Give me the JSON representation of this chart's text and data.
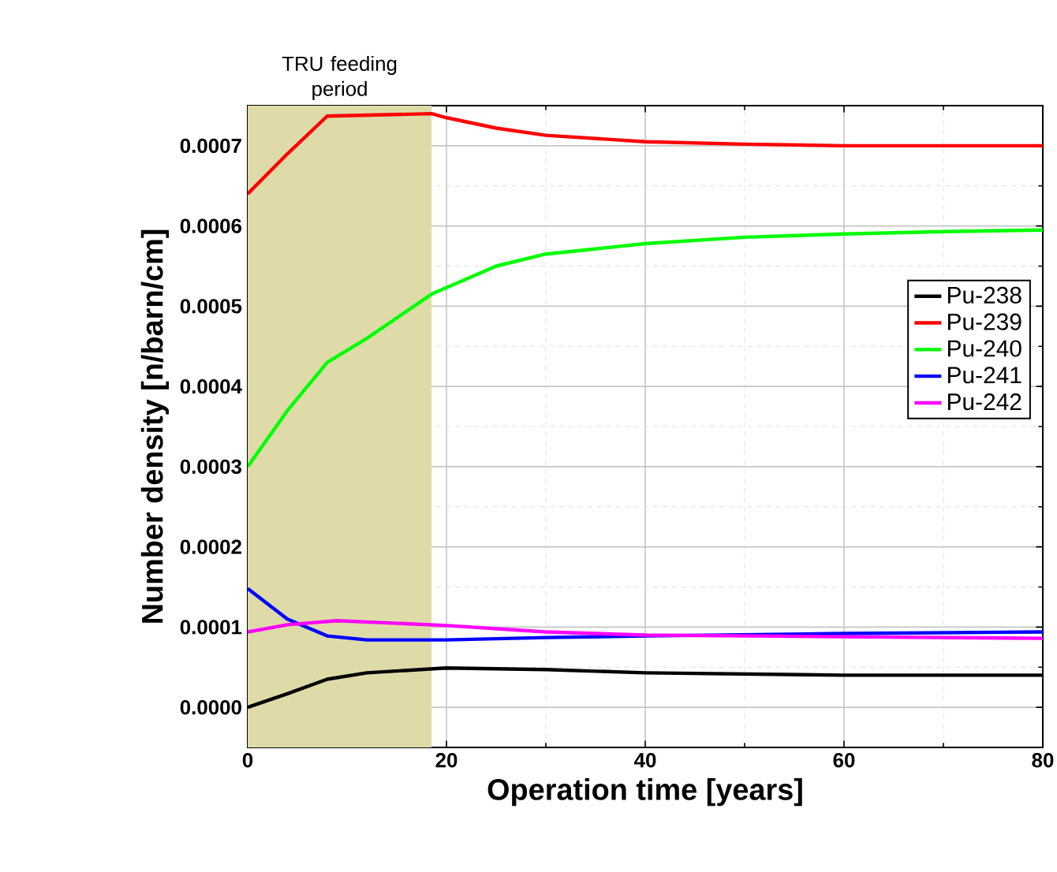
{
  "chart_data": {
    "type": "line",
    "xlabel": "Operation time [years]",
    "ylabel": "Number density [n/barn/cm]",
    "xlim": [
      0,
      80
    ],
    "xticks": [
      0,
      20,
      40,
      60,
      80
    ],
    "ylim": [
      -5e-05,
      0.00075
    ],
    "yticks": [
      {
        "value": 0,
        "label": "0.0000"
      },
      {
        "value": 0.0001,
        "label": "0.0001"
      },
      {
        "value": 0.0002,
        "label": "0.0002"
      },
      {
        "value": 0.0003,
        "label": "0.0003"
      },
      {
        "value": 0.0004,
        "label": "0.0004"
      },
      {
        "value": 0.0005,
        "label": "0.0005"
      },
      {
        "value": 0.0006,
        "label": "0.0006"
      },
      {
        "value": 0.0007,
        "label": "0.0007"
      }
    ],
    "grid": true,
    "legend": "right",
    "marker": "none",
    "line_style": "solid",
    "bands": [
      {
        "axis": "x",
        "from": 0,
        "to": 18.5,
        "label": "TRU feeding period",
        "color": "#dedba9"
      }
    ],
    "series": [
      {
        "name": "Pu-238",
        "color": "#000000",
        "x": [
          0,
          4,
          8,
          12,
          20,
          30,
          40,
          60,
          80
        ],
        "values": [
          0.0,
          1.7e-05,
          3.5e-05,
          4.3e-05,
          4.9e-05,
          4.7e-05,
          4.3e-05,
          4e-05,
          4e-05
        ]
      },
      {
        "name": "Pu-239",
        "color": "#ff0000",
        "x": [
          0,
          4,
          8,
          18.5,
          20,
          25,
          30,
          40,
          50,
          60,
          80
        ],
        "values": [
          0.00064,
          0.00069,
          0.000737,
          0.00074,
          0.000735,
          0.000722,
          0.000713,
          0.000705,
          0.000702,
          0.0007,
          0.0007
        ]
      },
      {
        "name": "Pu-240",
        "color": "#00ff00",
        "x": [
          0,
          4,
          8,
          12,
          18.5,
          25,
          30,
          40,
          50,
          60,
          70,
          80
        ],
        "values": [
          0.0003,
          0.00037,
          0.00043,
          0.00046,
          0.000515,
          0.00055,
          0.000565,
          0.000578,
          0.000586,
          0.00059,
          0.000593,
          0.000595
        ]
      },
      {
        "name": "Pu-241",
        "color": "#0000ff",
        "x": [
          0,
          4,
          8,
          12,
          20,
          30,
          40,
          60,
          80
        ],
        "values": [
          0.000148,
          0.00011,
          8.9e-05,
          8.4e-05,
          8.4e-05,
          8.7e-05,
          8.9e-05,
          9.2e-05,
          9.4e-05
        ]
      },
      {
        "name": "Pu-242",
        "color": "#ff00ff",
        "x": [
          0,
          4,
          9,
          20,
          30,
          40,
          60,
          80
        ],
        "values": [
          9.4e-05,
          0.000103,
          0.000108,
          0.000102,
          9.4e-05,
          9e-05,
          8.8e-05,
          8.6e-05
        ]
      }
    ]
  }
}
